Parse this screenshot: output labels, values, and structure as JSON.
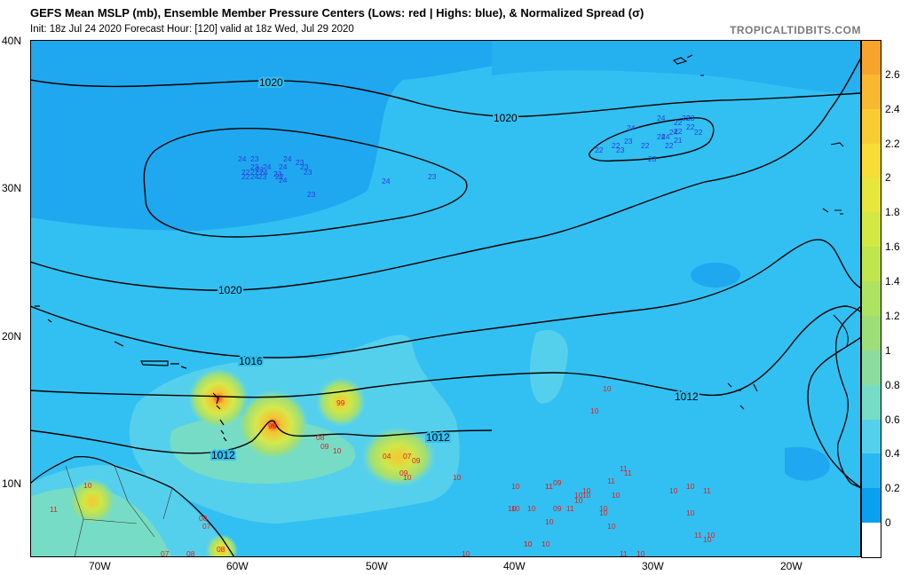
{
  "header": {
    "title": "GEFS Mean MSLP (mb), Ensemble Member Pressure Centers (Lows: red | Highs: blue), & Normalized Spread (σ)",
    "subtitle": "Init: 18z Jul 24 2020   Forecast Hour: [120]   valid at 18z Wed, Jul 29 2020",
    "brand": "TROPICALTIDBITS.COM"
  },
  "axes": {
    "lat_labels": [
      "40N",
      "30N",
      "20N",
      "10N"
    ],
    "lon_labels": [
      "70W",
      "60W",
      "50W",
      "40W",
      "30W",
      "20W"
    ]
  },
  "isobars": {
    "labels": [
      "1020",
      "1020",
      "1020",
      "1016",
      "1012",
      "1012",
      "1012"
    ]
  },
  "colorbar": {
    "labels": [
      "2.6",
      "2.4",
      "2.2",
      "2",
      "1.8",
      "1.6",
      "1.4",
      "1.2",
      "1",
      "0.8",
      "0.6",
      "0.4",
      "0.2",
      "0"
    ],
    "colors": [
      "#f6a42b",
      "#f8b830",
      "#f9cc33",
      "#f7dd36",
      "#e6e63c",
      "#d4e843",
      "#c0e64e",
      "#aee262",
      "#9ede78",
      "#8cdca0",
      "#77dcc5",
      "#55d0ec",
      "#2ab8f4",
      "#0aa0f0",
      "#ffffff"
    ]
  },
  "highs": {
    "color": "#2a3fd8",
    "labels": [
      "24",
      "23",
      "23",
      "24",
      "24",
      "23",
      "22",
      "22",
      "24",
      "21",
      "22",
      "23",
      "22",
      "24",
      "24",
      "24",
      "23",
      "23",
      "23",
      "23",
      "24",
      "22",
      "24",
      "23",
      "24",
      "23",
      "22",
      "22",
      "23",
      "23",
      "21",
      "22",
      "24",
      "24",
      "22",
      "22",
      "22",
      "22",
      "23",
      "24",
      "23"
    ]
  },
  "lows": {
    "color": "#e02020",
    "labels": [
      "99",
      "08",
      "09",
      "10",
      "04",
      "07",
      "09",
      "09",
      "10",
      "10",
      "10",
      "10",
      "10",
      "11",
      "10",
      "10",
      "08",
      "07",
      "07",
      "08",
      "08",
      "99",
      "10",
      "10",
      "11",
      "09",
      "11",
      "10",
      "10",
      "09",
      "11",
      "10",
      "10",
      "10",
      "11",
      "10",
      "10",
      "11",
      "10",
      "10",
      "10",
      "11",
      "10",
      "10",
      "11",
      "10",
      "10",
      "11",
      "10",
      "10",
      "10",
      "10",
      "11",
      "10"
    ]
  }
}
